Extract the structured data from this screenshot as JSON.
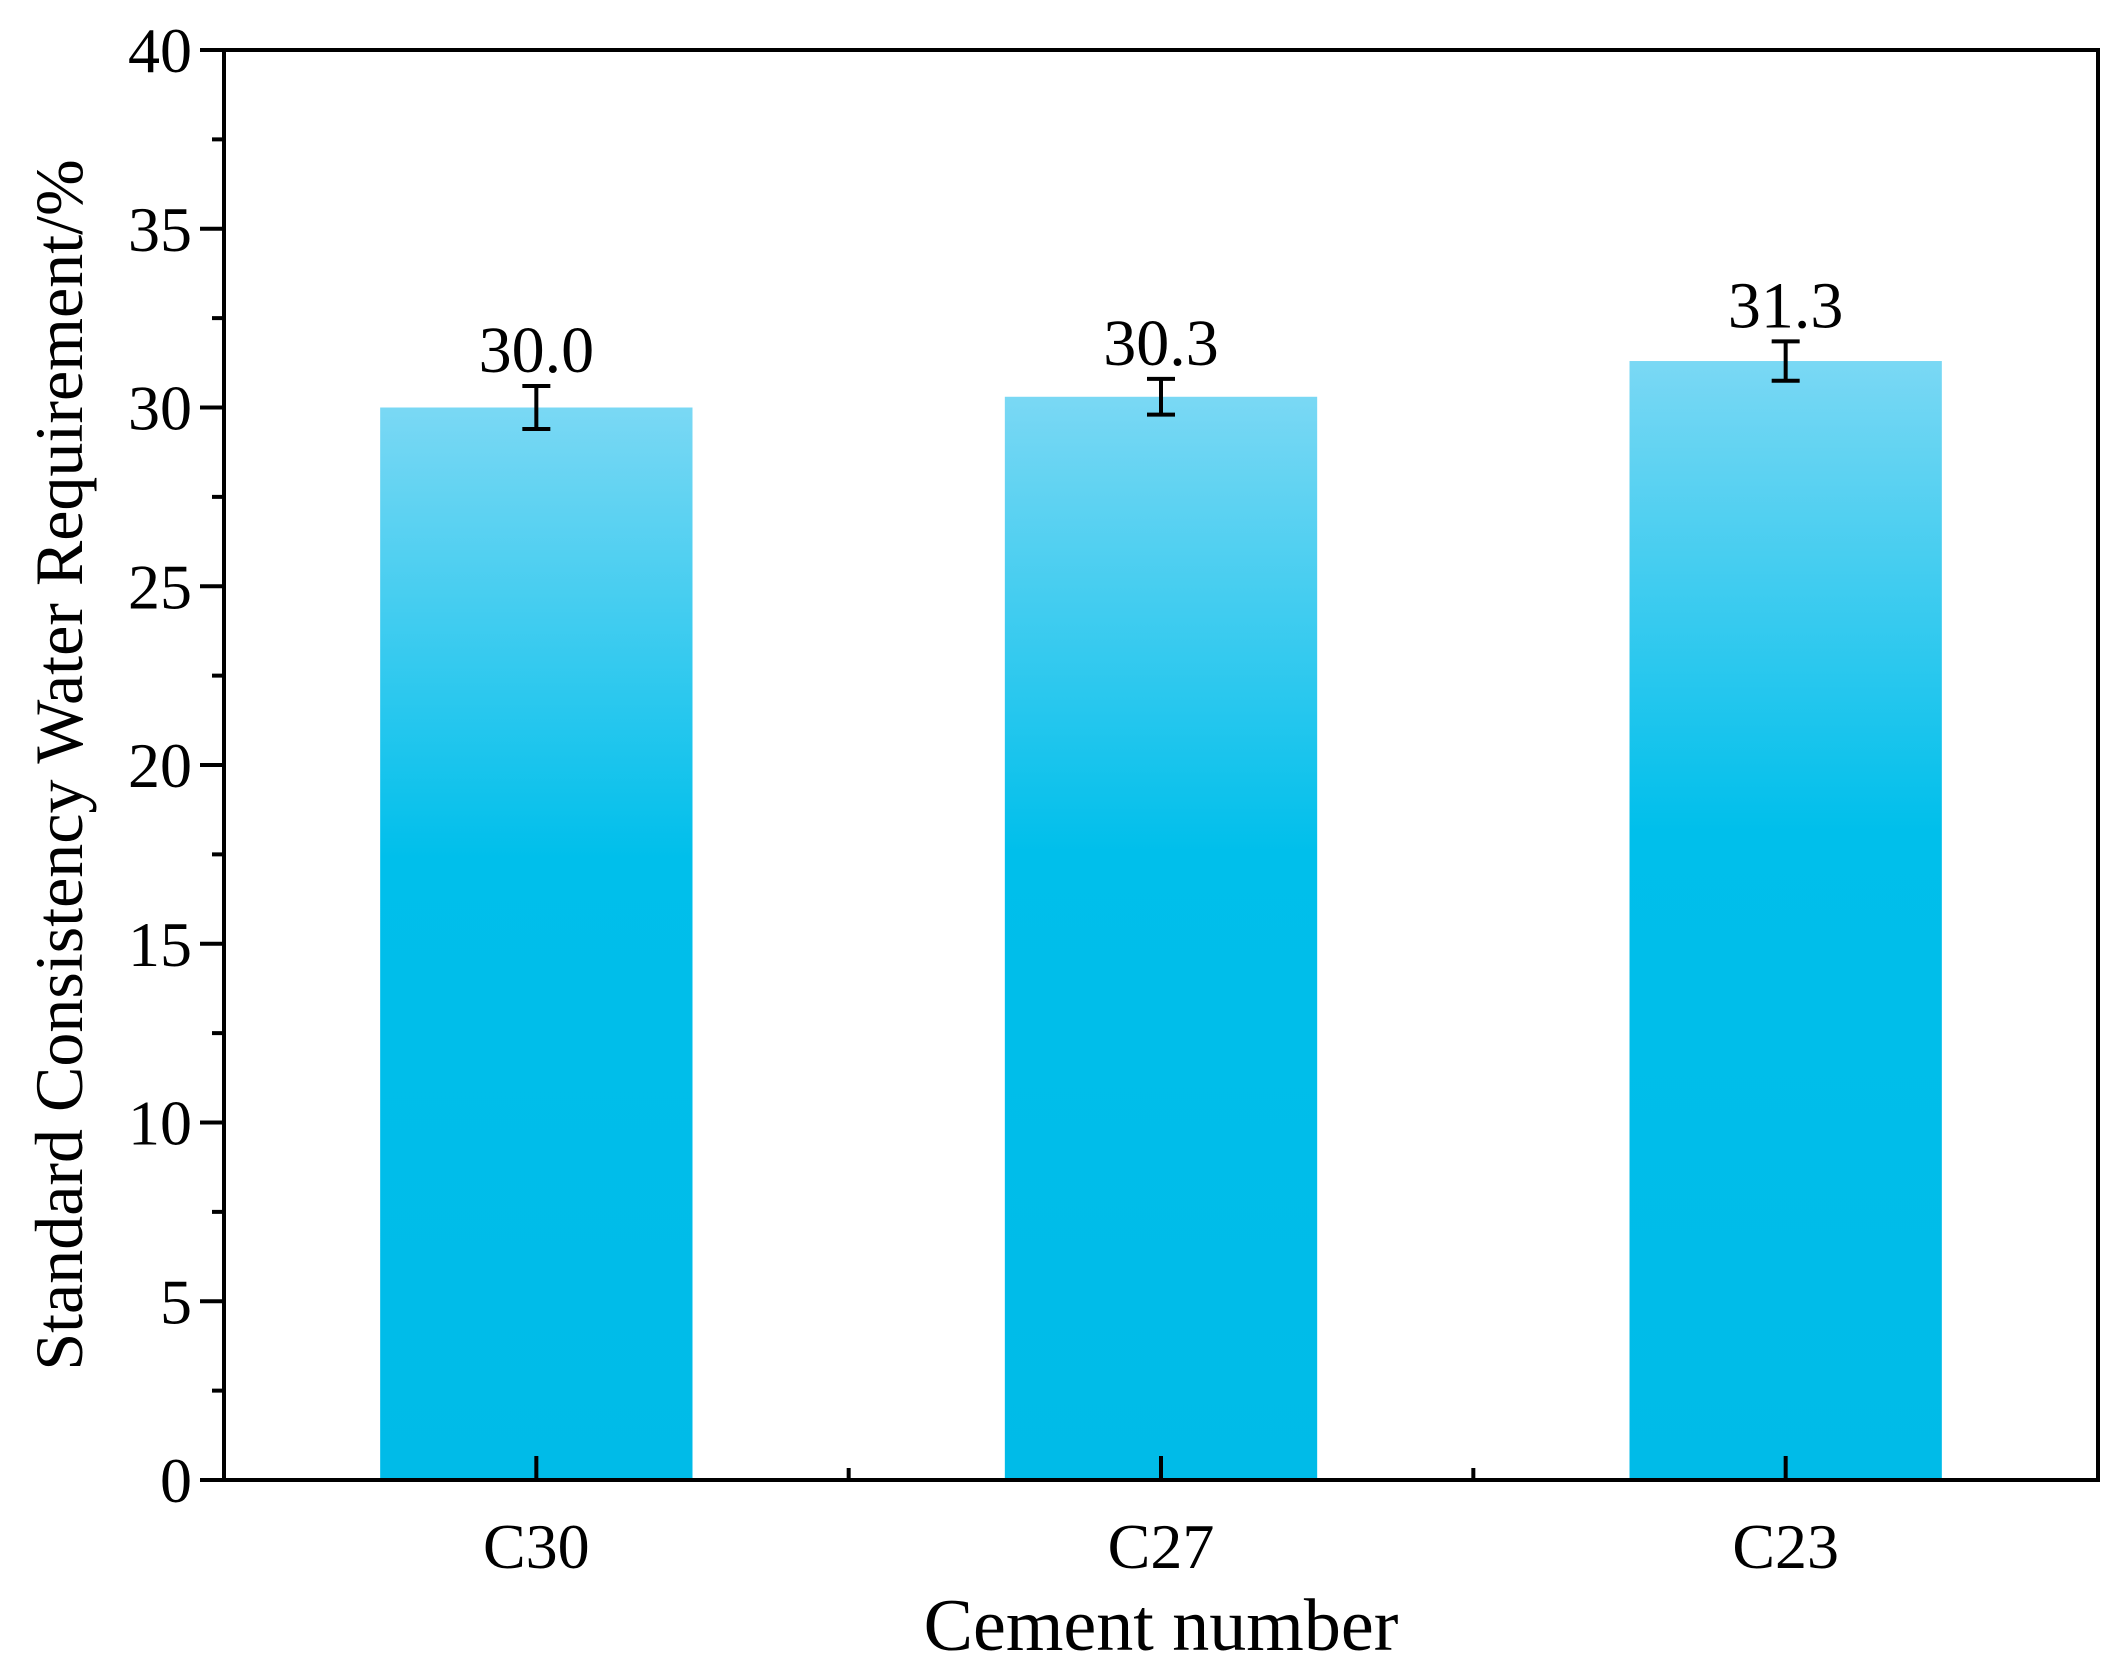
{
  "chart_data": {
    "type": "bar",
    "title": "",
    "xlabel": "Cement number",
    "ylabel": "Standard Consistency Water Requirement/%",
    "categories": [
      "C30",
      "C27",
      "C23"
    ],
    "values": [
      30.0,
      30.3,
      31.3
    ],
    "value_labels": [
      "30.0",
      "30.3",
      "31.3"
    ],
    "errors": [
      0.6,
      0.5,
      0.55
    ],
    "ylim": [
      0,
      40
    ],
    "yticks": [
      0,
      5,
      10,
      15,
      20,
      25,
      30,
      35,
      40
    ],
    "ytick_labels": [
      "0",
      "5",
      "10",
      "15",
      "20",
      "25",
      "30",
      "35",
      "40"
    ],
    "grid": false,
    "legend": false,
    "colors": {
      "bar_top": "#7ad8f4",
      "bar_bottom": "#00bbe8",
      "axis": "#000000",
      "error_bar": "#000000"
    }
  }
}
